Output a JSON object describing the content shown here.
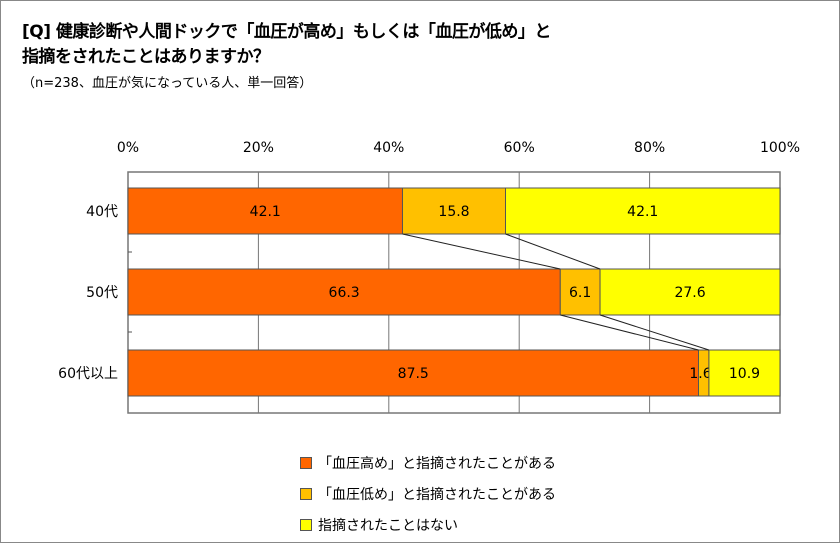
{
  "chart_data": {
    "type": "bar",
    "orientation": "horizontal",
    "stacked": true,
    "title": "[Q] 健康診断や人間ドックで「血圧が高め」もしくは「血圧が低め」と指摘をされたことはありますか？",
    "title_lines": [
      "[Q] 健康診断や人間ドックで「血圧が高め」もしくは「血圧が低め」と",
      "指摘をされたことはありますか？"
    ],
    "subtitle": "（n=238、血圧が気になっている人、単一回答）",
    "categories": [
      "40代",
      "50代",
      "60代以上"
    ],
    "series": [
      {
        "name": "「血圧高め」と指摘されたことがある",
        "values": [
          42.1,
          66.3,
          87.5
        ],
        "color": "#FF6600"
      },
      {
        "name": "「血圧低め」と指摘されたことがある",
        "values": [
          15.8,
          6.1,
          1.6
        ],
        "color": "#FFC000"
      },
      {
        "name": "指摘されたことはない",
        "values": [
          42.1,
          27.6,
          10.9
        ],
        "color": "#FFFF00"
      }
    ],
    "xlim": [
      0,
      100
    ],
    "x_ticks": [
      "0%",
      "20%",
      "40%",
      "60%",
      "80%",
      "100%"
    ],
    "grid": true,
    "series_lines": true,
    "legend_position": "bottom"
  }
}
